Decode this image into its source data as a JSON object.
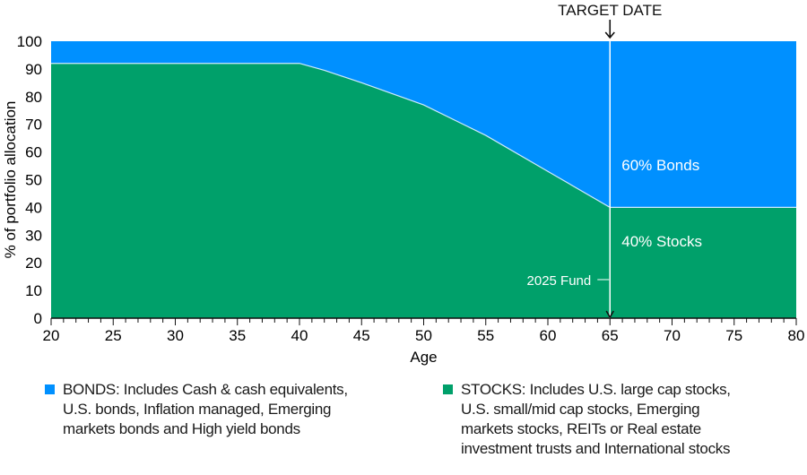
{
  "chart_data": {
    "type": "area",
    "stacked": true,
    "xlabel": "Age",
    "ylabel": "% of portfolio allocation",
    "xlim": [
      20,
      80
    ],
    "ylim": [
      0,
      100
    ],
    "xticks": [
      20,
      25,
      30,
      35,
      40,
      45,
      50,
      55,
      60,
      65,
      70,
      75,
      80
    ],
    "yticks": [
      0,
      10,
      20,
      30,
      40,
      50,
      60,
      70,
      80,
      90,
      100
    ],
    "grid": false,
    "x": [
      20,
      40,
      42,
      45,
      50,
      55,
      60,
      65,
      80
    ],
    "series": [
      {
        "name": "STOCKS",
        "color": "#00a06a",
        "values": [
          92,
          92,
          89.5,
          85,
          77,
          66,
          53,
          40,
          40
        ]
      },
      {
        "name": "BONDS",
        "color": "#0090ff",
        "values": [
          8,
          8,
          10.5,
          15,
          23,
          34,
          47,
          60,
          60
        ]
      }
    ],
    "annotations": {
      "target_date": {
        "label": "TARGET DATE",
        "x": 65
      },
      "bonds_label": "60% Bonds",
      "stocks_label": "40% Stocks",
      "fund_label": "2025 Fund"
    },
    "legend": {
      "placement": "bottom",
      "bonds": "BONDS: Includes Cash & cash equivalents,\nU.S. bonds, Inflation managed, Emerging\nmarkets bonds and High yield bonds",
      "stocks": "STOCKS: Includes U.S. large cap stocks,\nU.S. small/mid cap stocks, Emerging\nmarkets stocks, REITs or Real estate\ninvestment trusts and International stocks"
    }
  }
}
